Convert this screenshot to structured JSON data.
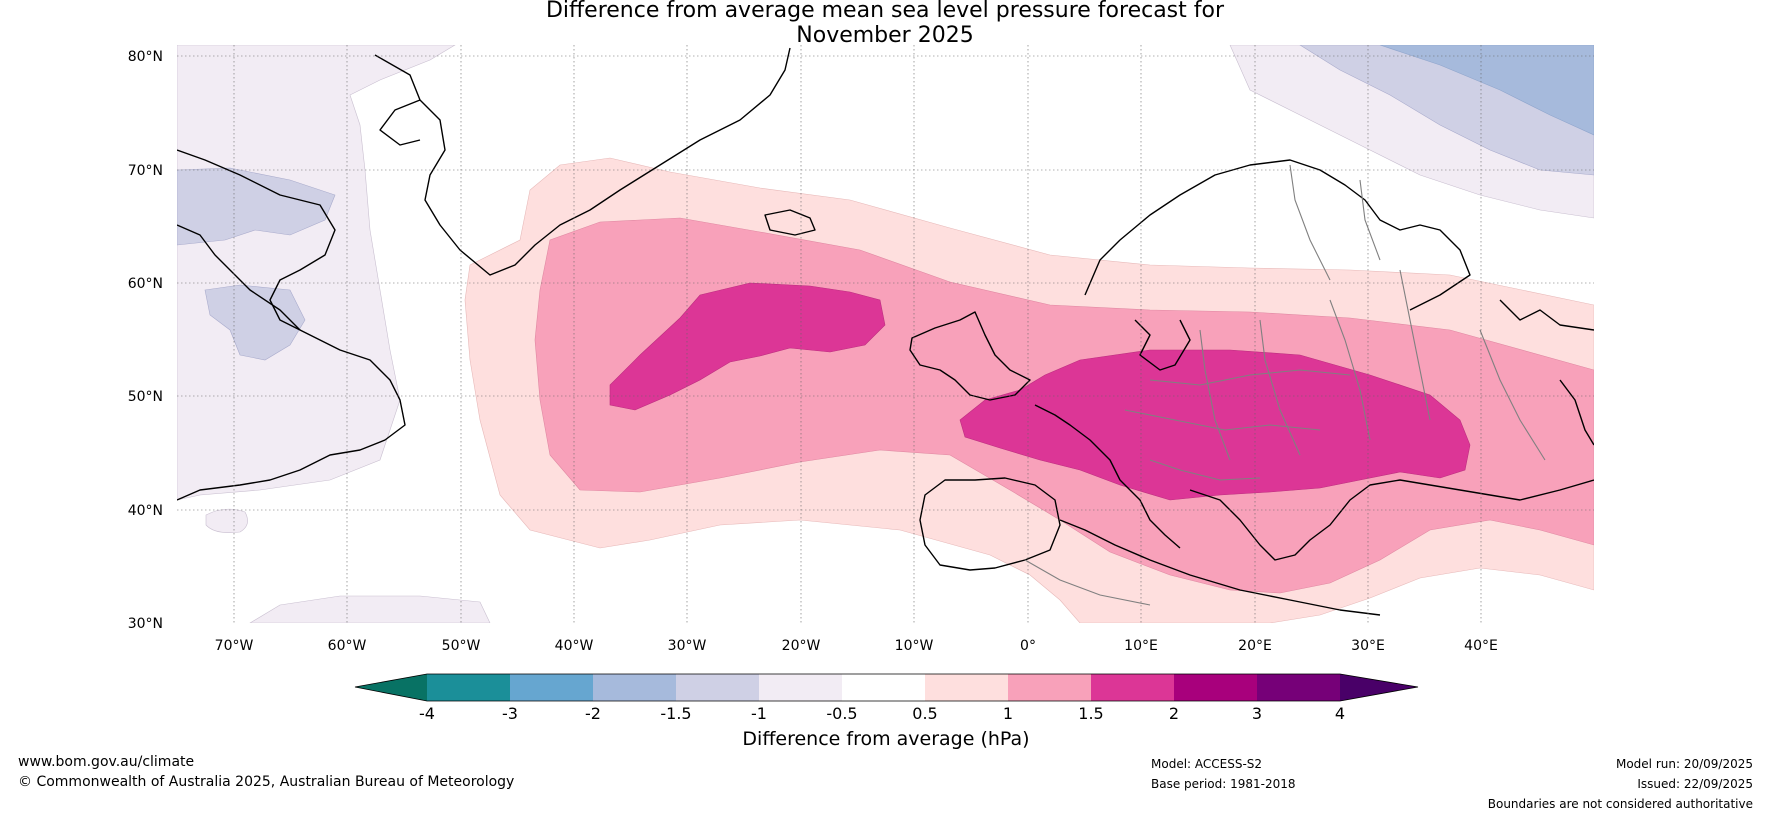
{
  "title": {
    "line1": "Difference from average mean sea level pressure forecast for",
    "line2": "November 2025"
  },
  "map": {
    "lat_labels": [
      "80°N",
      "70°N",
      "60°N",
      "50°N",
      "40°N",
      "30°N"
    ],
    "lon_labels": [
      "70°W",
      "60°W",
      "50°W",
      "40°W",
      "30°W",
      "20°W",
      "10°W",
      "0°",
      "10°E",
      "20°E",
      "30°E",
      "40°E"
    ],
    "lat_range": [
      30,
      81
    ],
    "lon_range": [
      -75,
      50
    ]
  },
  "colorbar": {
    "title": "Difference from average (hPa)",
    "tick_labels": [
      "-4",
      "-3",
      "-2",
      "-1.5",
      "-1",
      "-0.5",
      "0.5",
      "1",
      "1.5",
      "2",
      "3",
      "4"
    ],
    "colors": [
      "#1b8f99",
      "#66a6d0",
      "#a6badc",
      "#cfd0e5",
      "#f2ecf4",
      "#ffffff",
      "#fedfde",
      "#f8a1ba",
      "#dc3696",
      "#a8007c",
      "#760078"
    ],
    "extend_low_color": "#087264",
    "extend_high_color": "#490068"
  },
  "footer": {
    "website": "www.bom.gov.au/climate",
    "copyright": "© Commonwealth of Australia 2025, Australian Bureau of Meteorology",
    "model": "Model: ACCESS-S2",
    "base_period": "Base period: 1981-2018",
    "model_run": "Model run: 20/09/2025",
    "issued": "Issued: 22/09/2025",
    "disclaimer": "Boundaries are not considered authoritative"
  }
}
